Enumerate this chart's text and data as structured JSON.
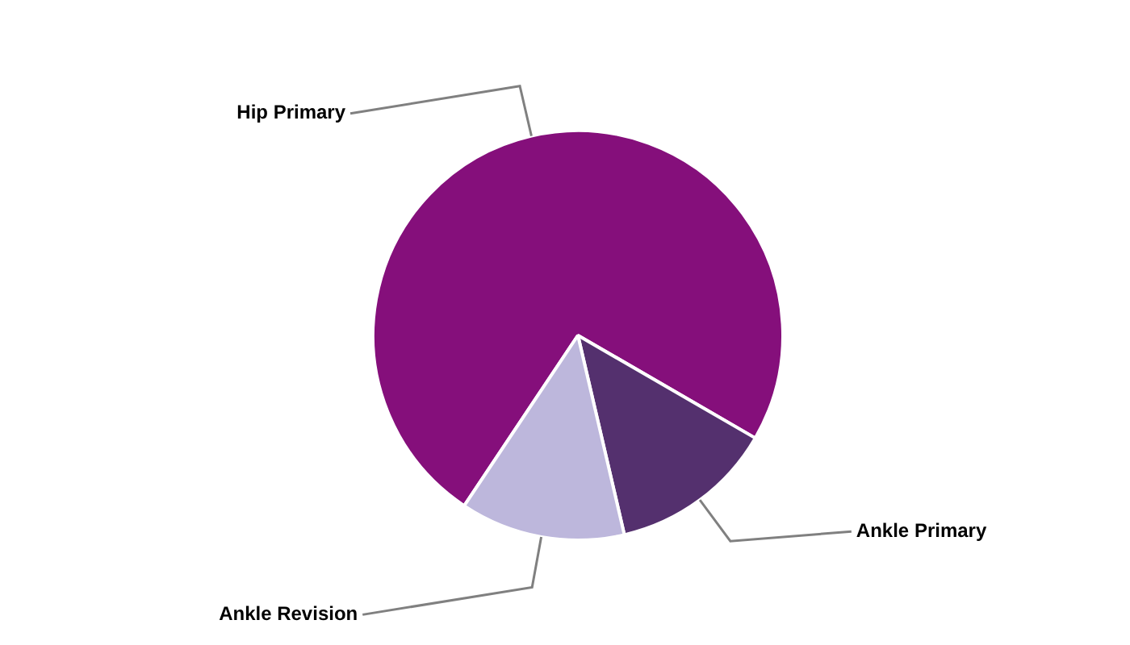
{
  "chart_data": {
    "type": "pie",
    "categories": [
      "Hip Primary",
      "Ankle Primary",
      "Ankle Revision"
    ],
    "values": [
      74,
      13,
      13
    ],
    "colors": [
      "#850f7b",
      "#54306e",
      "#bdb7dc"
    ],
    "legend": false
  }
}
